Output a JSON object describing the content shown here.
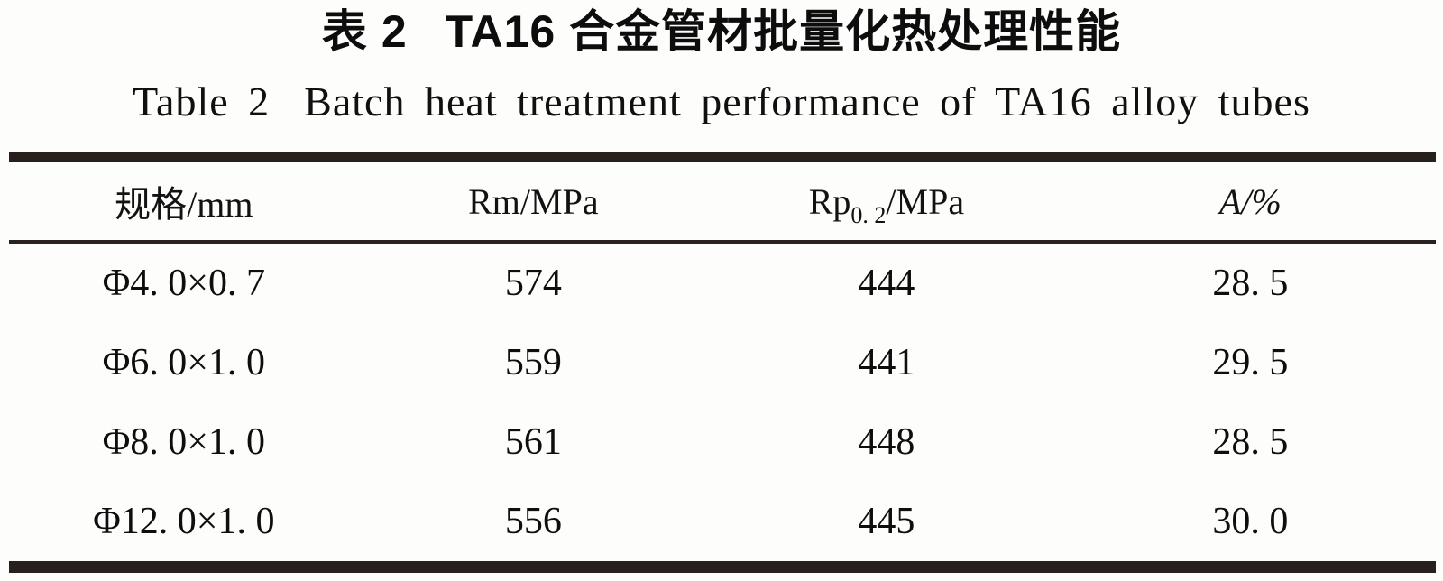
{
  "titles": {
    "zh_label": "表 2",
    "zh_text": "TA16 合金管材批量化热处理性能",
    "en_label": "Table 2",
    "en_text": "Batch heat treatment performance of TA16 alloy tubes"
  },
  "colors": {
    "rule": "#27201c",
    "text": "#121212",
    "background": "#fdfdfc"
  },
  "chart_data": {
    "type": "table",
    "title_zh": "表 2 TA16 合金管材批量化热处理性能",
    "title_en": "Table 2 Batch heat treatment performance of TA16 alloy tubes",
    "columns": [
      "规格/mm",
      "Rm/MPa",
      "Rp0.2/MPa",
      "A/%"
    ],
    "rows": [
      [
        "Φ4.0×0.7",
        574,
        444,
        28.5
      ],
      [
        "Φ6.0×1.0",
        559,
        441,
        29.5
      ],
      [
        "Φ8.0×1.0",
        561,
        448,
        28.5
      ],
      [
        "Φ12.0×1.0",
        556,
        445,
        30.0
      ]
    ]
  },
  "table": {
    "headers": [
      {
        "label": "规格/mm"
      },
      {
        "label": "Rm/MPa"
      },
      {
        "base": "Rp",
        "sub": "0. 2",
        "rest": "/MPa"
      },
      {
        "label": "A/%"
      }
    ],
    "rows": [
      [
        "Φ4. 0×0. 7",
        "574",
        "444",
        "28. 5"
      ],
      [
        "Φ6. 0×1. 0",
        "559",
        "441",
        "29. 5"
      ],
      [
        "Φ8. 0×1. 0",
        "561",
        "448",
        "28. 5"
      ],
      [
        "Φ12. 0×1. 0",
        "556",
        "445",
        "30. 0"
      ]
    ]
  }
}
